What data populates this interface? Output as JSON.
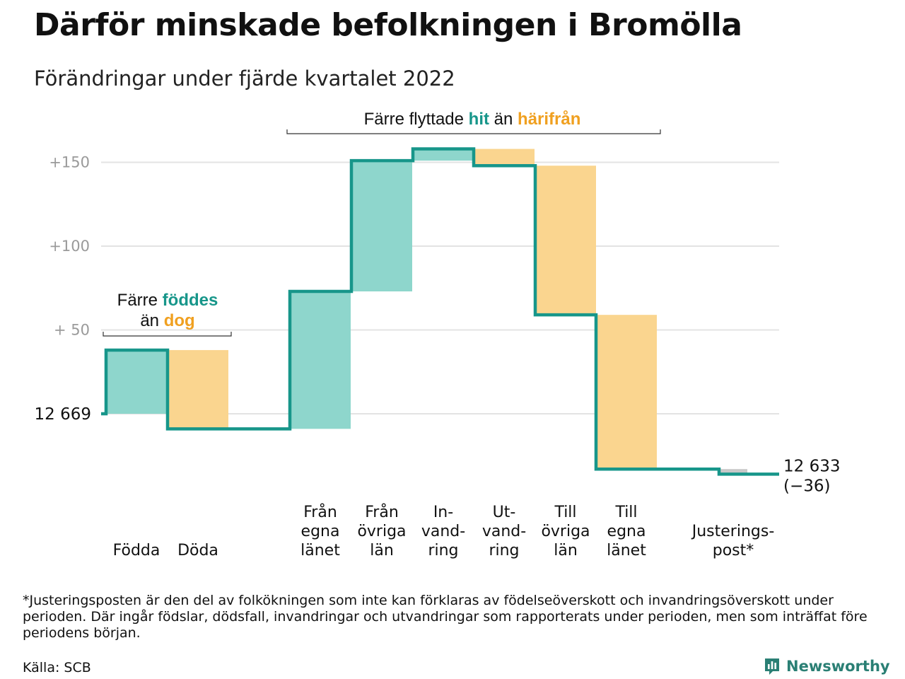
{
  "header": {
    "title": "Därför minskade befolkningen i Bromölla",
    "subtitle": "Förändringar under fjärde kvartalet 2022"
  },
  "colors": {
    "inflow": "#8ed6cc",
    "outflow": "#fad58f",
    "adjustment": "#c8c8c8",
    "line": "#17968a",
    "grid": "#e3e3e3",
    "tick": "#9a9a9a",
    "accent_teal": "#17968a",
    "accent_orange": "#f0a020"
  },
  "chart_data": {
    "type": "waterfall",
    "start_value": 12669,
    "start_label": "12 669",
    "end_label_value": "12 633",
    "end_label_change": "(−36)",
    "ylim": [
      -36,
      160
    ],
    "yticks": [
      {
        "value": 50,
        "label": "+ 50"
      },
      {
        "value": 100,
        "label": "+100"
      },
      {
        "value": 150,
        "label": "+150"
      }
    ],
    "steps": [
      {
        "label": [
          "Födda"
        ],
        "delta": 38,
        "kind": "in"
      },
      {
        "label": [
          "Döda"
        ],
        "delta": -47,
        "kind": "out"
      },
      {
        "label": [
          "Från",
          "egna",
          "länet"
        ],
        "delta": 82,
        "kind": "in"
      },
      {
        "label": [
          "Från",
          "övriga",
          "län"
        ],
        "delta": 78,
        "kind": "in"
      },
      {
        "label": [
          "In-",
          "vand-",
          "ring"
        ],
        "delta": 7,
        "kind": "in"
      },
      {
        "label": [
          "Ut-",
          "vand-",
          "ring"
        ],
        "delta": -10,
        "kind": "out"
      },
      {
        "label": [
          "Till",
          "övriga",
          "län"
        ],
        "delta": -89,
        "kind": "out"
      },
      {
        "label": [
          "Till",
          "egna",
          "länet"
        ],
        "delta": -92,
        "kind": "out"
      },
      {
        "label": [
          "Justerings-",
          "post*"
        ],
        "delta": -3,
        "kind": "adj"
      }
    ],
    "annotations": [
      {
        "parts": [
          {
            "text": "Färre ",
            "color": "#111111"
          },
          {
            "text": "föddes",
            "color": "#17968a"
          }
        ],
        "parts2": [
          {
            "text": "än ",
            "color": "#111111"
          },
          {
            "text": "dog",
            "color": "#f0a020"
          }
        ]
      },
      {
        "parts": [
          {
            "text": "Färre flyttade ",
            "color": "#111111"
          },
          {
            "text": "hit",
            "color": "#17968a"
          },
          {
            "text": " än ",
            "color": "#111111"
          },
          {
            "text": "härifrån",
            "color": "#f0a020"
          }
        ]
      }
    ]
  },
  "footer": {
    "footnote": "*Justeringsposten är den del av folkökningen som inte kan förklaras av födelseöverskott och invandringsöverskott under perioden. Där ingår födslar, dödsfall, invandringar och utvandringar som rapporterats under perioden, men som inträffat före periodens början.",
    "source": "Källa: SCB",
    "brand": "Newsworthy"
  }
}
